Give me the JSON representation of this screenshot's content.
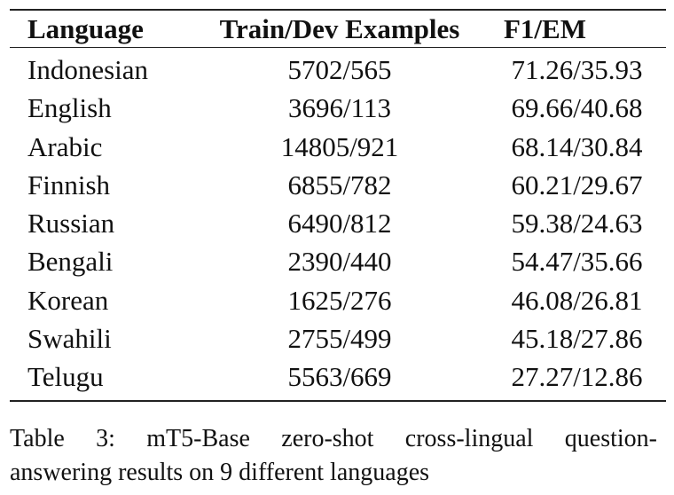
{
  "table": {
    "headers": {
      "language": "Language",
      "examples": "Train/Dev Examples",
      "f1em": "F1/EM"
    },
    "rows": [
      {
        "language": "Indonesian",
        "examples": "5702/565",
        "f1em": "71.26/35.93"
      },
      {
        "language": "English",
        "examples": "3696/113",
        "f1em": "69.66/40.68"
      },
      {
        "language": "Arabic",
        "examples": "14805/921",
        "f1em": "68.14/30.84"
      },
      {
        "language": "Finnish",
        "examples": "6855/782",
        "f1em": "60.21/29.67"
      },
      {
        "language": "Russian",
        "examples": "6490/812",
        "f1em": "59.38/24.63"
      },
      {
        "language": "Bengali",
        "examples": "2390/440",
        "f1em": "54.47/35.66"
      },
      {
        "language": "Korean",
        "examples": "1625/276",
        "f1em": "46.08/26.81"
      },
      {
        "language": "Swahili",
        "examples": "2755/499",
        "f1em": "45.18/27.86"
      },
      {
        "language": "Telugu",
        "examples": "5563/669",
        "f1em": "27.27/12.86"
      }
    ]
  },
  "caption": {
    "line1": "Table 3:  mT5-Base zero-shot cross-lingual question-",
    "line2": "answering results on 9 different languages"
  }
}
